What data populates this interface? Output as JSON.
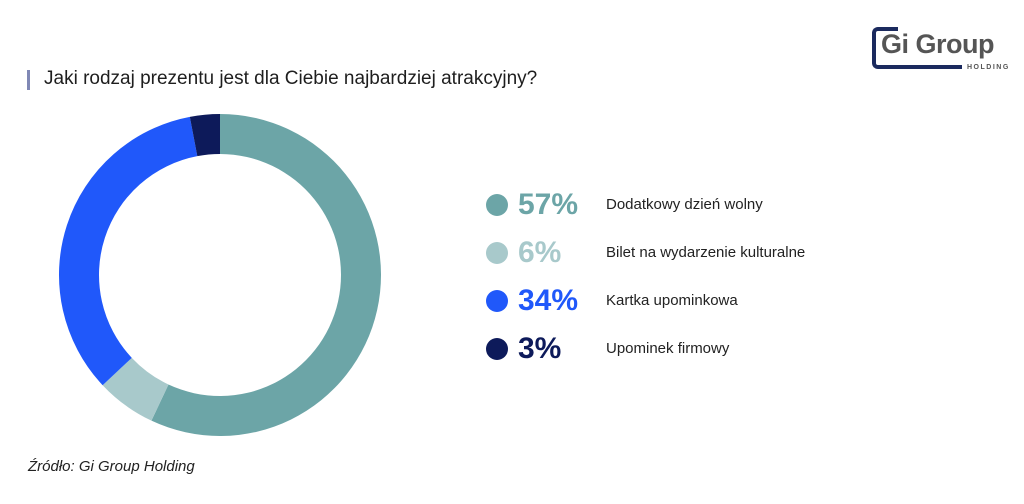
{
  "header": {
    "title": "Jaki rodzaj prezentu jest dla Ciebie najbardziej atrakcyjny?",
    "logo_main": "Gi Group",
    "logo_sub": "HOLDING"
  },
  "footer": {
    "source": "Źródło: Gi Group Holding"
  },
  "legend": [
    {
      "pct": "57%",
      "label": "Dodatkowy dzień wolny",
      "color": "#6ca5a7"
    },
    {
      "pct": "6%",
      "label": "Bilet na wydarzenie kulturalne",
      "color": "#a8c9cb"
    },
    {
      "pct": "34%",
      "label": "Kartka upominkowa",
      "color": "#2058fa"
    },
    {
      "pct": "3%",
      "label": "Upominek firmowy",
      "color": "#0d1a5a"
    }
  ],
  "chart_data": {
    "type": "pie",
    "variant": "donut",
    "title": "Jaki rodzaj prezentu jest dla Ciebie najbardziej atrakcyjny?",
    "categories": [
      "Dodatkowy dzień wolny",
      "Bilet na wydarzenie kulturalne",
      "Kartka upominkowa",
      "Upominek firmowy"
    ],
    "values": [
      57,
      6,
      34,
      3
    ],
    "unit": "%",
    "colors": [
      "#6ca5a7",
      "#a8c9cb",
      "#2058fa",
      "#0d1a5a"
    ],
    "legend_position": "right",
    "source": "Źródło: Gi Group Holding"
  }
}
